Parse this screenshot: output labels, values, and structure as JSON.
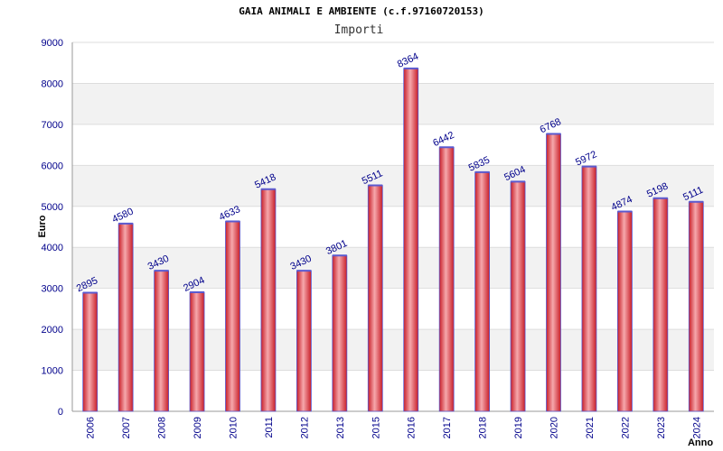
{
  "chart_data": {
    "type": "bar",
    "title": "GAIA ANIMALI E AMBIENTE (c.f.97160720153)",
    "subtitle": "Importi",
    "xlabel": "Anno",
    "ylabel": "Euro",
    "categories": [
      "2006",
      "2007",
      "2008",
      "2009",
      "2010",
      "2011",
      "2012",
      "2013",
      "2015",
      "2016",
      "2017",
      "2018",
      "2019",
      "2020",
      "2021",
      "2022",
      "2023",
      "2024"
    ],
    "values": [
      2895,
      4580,
      3430,
      2904,
      4633,
      5418,
      3430,
      3801,
      5511,
      8364,
      6442,
      5835,
      5604,
      6768,
      5972,
      4874,
      5198,
      5111
    ],
    "ylim": [
      0,
      9000
    ],
    "yticks": [
      0,
      1000,
      2000,
      3000,
      4000,
      5000,
      6000,
      7000,
      8000,
      9000
    ],
    "grid": true,
    "colors": {
      "bar": "#e8303a",
      "bar_highlight": "#f6a8ac",
      "bar_edge": "#5a5ad0",
      "band": "#f2f2f2",
      "gridline": "#dddddd",
      "text": "#00008b"
    }
  }
}
